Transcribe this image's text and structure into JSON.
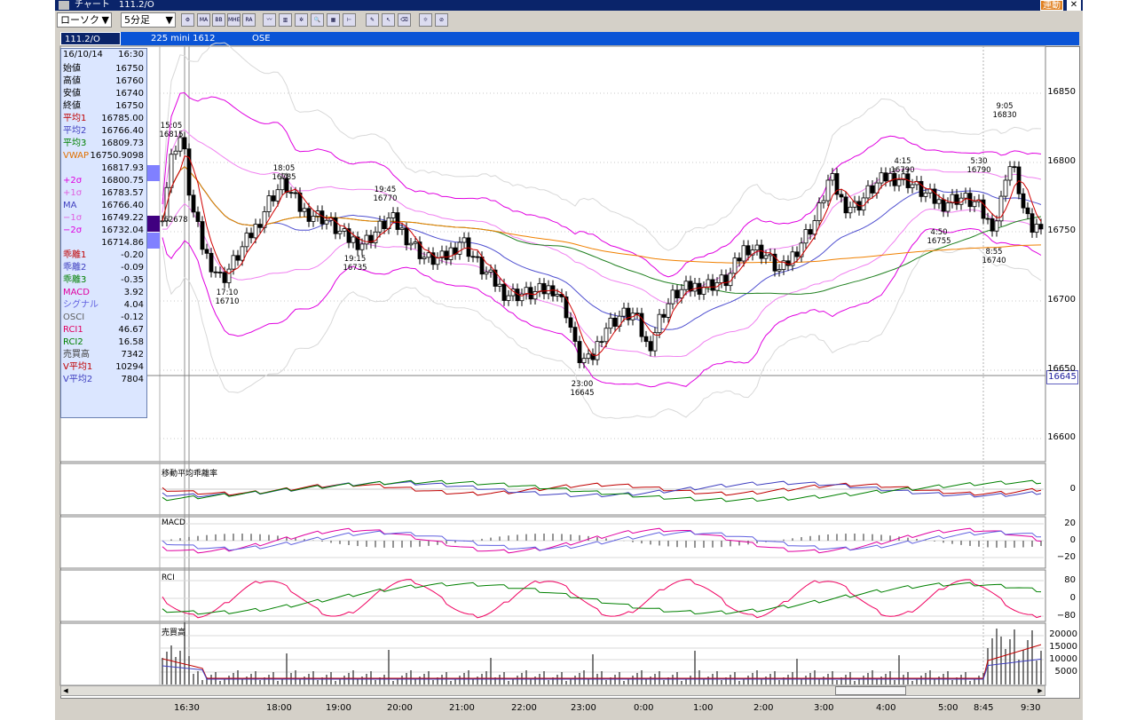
{
  "window": {
    "title": "チャート　111.2/O",
    "link_label": "連動",
    "close_label": "✕"
  },
  "toolbar": {
    "type_select": "ローソク",
    "interval_select": "5分足",
    "buttons": [
      "chart-config",
      "MA",
      "BB",
      "MHE",
      "RA",
      "line",
      "bar",
      "params",
      "zoom",
      "arrange",
      "range",
      "pen",
      "pointer",
      "eraser",
      "search",
      "clear"
    ]
  },
  "infobar": {
    "code": "111.2/O",
    "name": "225 mini 1612",
    "exchange": "OSE"
  },
  "datapanel": {
    "date": "16/10/14",
    "time": "16:30",
    "rows": [
      {
        "label": "始値",
        "value": "16750",
        "color": "#000000"
      },
      {
        "label": "高値",
        "value": "16760",
        "color": "#000000"
      },
      {
        "label": "安値",
        "value": "16740",
        "color": "#000000"
      },
      {
        "label": "終値",
        "value": "16750",
        "color": "#000000"
      },
      {
        "label": "平均1",
        "value": "16785.00",
        "color": "#c00000"
      },
      {
        "label": "平均2",
        "value": "16766.40",
        "color": "#4040c0"
      },
      {
        "label": "平均3",
        "value": "16809.73",
        "color": "#008000"
      },
      {
        "label": "VWAP",
        "value": "16750.9098",
        "color": "#e07000"
      },
      {
        "label": "",
        "value": "16817.93",
        "color": "#000000"
      },
      {
        "label": "+2σ",
        "value": "16800.75",
        "color": "#e000e0"
      },
      {
        "label": "+1σ",
        "value": "16783.57",
        "color": "#e060e0"
      },
      {
        "label": "MA",
        "value": "16766.40",
        "color": "#4040c0"
      },
      {
        "label": "−1σ",
        "value": "16749.22",
        "color": "#e060e0"
      },
      {
        "label": "−2σ",
        "value": "16732.04",
        "color": "#e000e0"
      },
      {
        "label": "",
        "value": "16714.86",
        "color": "#000000"
      },
      {
        "label": "乖離1",
        "value": "-0.20",
        "color": "#c00000"
      },
      {
        "label": "乖離2",
        "value": "-0.09",
        "color": "#4040c0"
      },
      {
        "label": "乖離3",
        "value": "-0.35",
        "color": "#008000"
      },
      {
        "label": "MACD",
        "value": "3.92",
        "color": "#e000a0"
      },
      {
        "label": "シグナル",
        "value": "4.04",
        "color": "#6060e0"
      },
      {
        "label": "OSCI",
        "value": "-0.12",
        "color": "#606060"
      },
      {
        "label": "RCI1",
        "value": "46.67",
        "color": "#e00060"
      },
      {
        "label": "RCI2",
        "value": "16.58",
        "color": "#008000"
      },
      {
        "label": "売買高",
        "value": "7342",
        "color": "#404040"
      },
      {
        "label": "V平均1",
        "value": "10294",
        "color": "#c00000"
      },
      {
        "label": "V平均2",
        "value": "7804",
        "color": "#4040c0"
      }
    ]
  },
  "price_axis": [
    "16850",
    "16800",
    "16750",
    "16700",
    "16650",
    "16600"
  ],
  "current_price": "16645",
  "volume_label_left": "62678",
  "annotations": [
    {
      "time": "15:05",
      "price": "16815"
    },
    {
      "time": "18:05",
      "price": "16785"
    },
    {
      "time": "19:45",
      "price": "16770"
    },
    {
      "time": "19:15",
      "price": "16735"
    },
    {
      "time": "17:10",
      "price": "16710"
    },
    {
      "time": "23:00",
      "price": "16645"
    },
    {
      "time": "4:15",
      "price": "16790"
    },
    {
      "time": "5:30",
      "price": "16790"
    },
    {
      "time": "9:05",
      "price": "16830"
    },
    {
      "time": "4:50",
      "price": "16755"
    },
    {
      "time": "8:55",
      "price": "16740"
    }
  ],
  "panels": {
    "kairi": {
      "title": "移動平均乖離率",
      "axis": [
        "0"
      ]
    },
    "macd": {
      "title": "MACD",
      "axis": [
        "20",
        "0",
        "−20"
      ]
    },
    "rci": {
      "title": "RCI",
      "axis": [
        "80",
        "0",
        "−80"
      ]
    },
    "volume": {
      "title": "売買高",
      "axis": [
        "20000",
        "15000",
        "10000",
        "5000"
      ]
    }
  },
  "time_axis": [
    "16:30",
    "18:00",
    "19:00",
    "20:00",
    "21:00",
    "22:00",
    "23:00",
    "0:00",
    "1:00",
    "2:00",
    "3:00",
    "4:00",
    "5:00",
    "8:45",
    "9:30"
  ]
}
